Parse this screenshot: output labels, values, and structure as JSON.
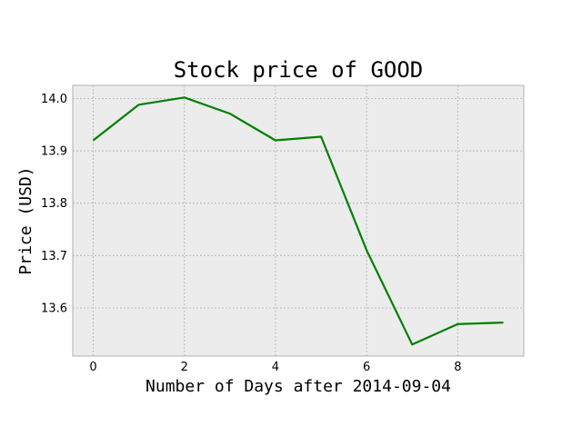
{
  "chart_data": {
    "type": "line",
    "title": "Stock price of GOOD",
    "xlabel": "Number of Days after 2014-09-04",
    "ylabel": "Price (USD)",
    "xlim": [
      -0.45,
      9.45
    ],
    "ylim": [
      13.508,
      14.025
    ],
    "x_ticks": [
      0,
      2,
      4,
      6,
      8
    ],
    "y_ticks": [
      13.6,
      13.7,
      13.8,
      13.9,
      14.0
    ],
    "y_tick_labels": [
      "13.6",
      "13.7",
      "13.8",
      "13.9",
      "14.0"
    ],
    "grid": true,
    "series": [
      {
        "color": "#008000",
        "x": [
          0,
          1,
          2,
          3,
          4,
          5,
          6,
          7,
          8,
          9
        ],
        "y": [
          13.92,
          13.988,
          14.002,
          13.971,
          13.92,
          13.927,
          13.71,
          13.53,
          13.569,
          13.572
        ]
      }
    ]
  }
}
